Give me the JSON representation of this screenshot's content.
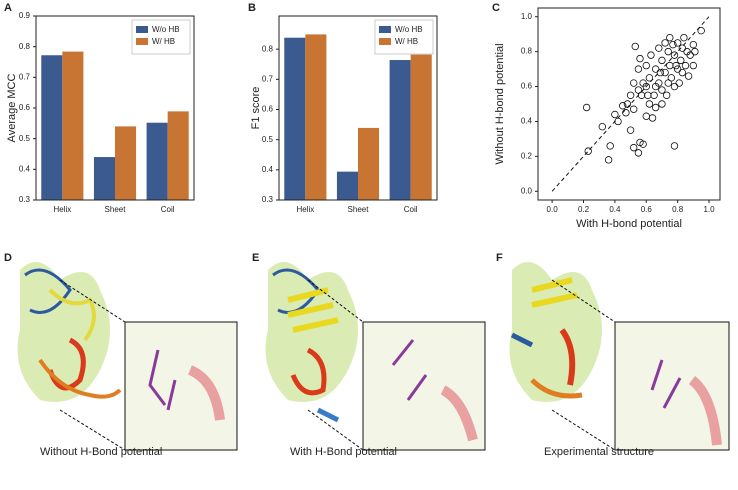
{
  "chart_data": [
    {
      "type": "bar",
      "panel": "A",
      "ylabel": "Average MCC",
      "categories": [
        "Helix",
        "Sheet",
        "Coil"
      ],
      "series": [
        {
          "name": "W/o HB",
          "color": "#3b5a8f",
          "values": [
            0.772,
            0.44,
            0.552
          ]
        },
        {
          "name": "W/ HB",
          "color": "#c87533",
          "values": [
            0.784,
            0.54,
            0.589
          ]
        }
      ],
      "ylim": [
        0.3,
        0.9
      ],
      "yticks": [
        0.3,
        0.4,
        0.5,
        0.6,
        0.7,
        0.8,
        0.9
      ],
      "legend": "upper right"
    },
    {
      "type": "bar",
      "panel": "B",
      "ylabel": "F1 score",
      "categories": [
        "Helix",
        "Sheet",
        "Coil"
      ],
      "series": [
        {
          "name": "W/o HB",
          "color": "#3b5a8f",
          "values": [
            0.838,
            0.394,
            0.764
          ]
        },
        {
          "name": "W/ HB",
          "color": "#c87533",
          "values": [
            0.849,
            0.539,
            0.782
          ]
        }
      ],
      "ylim": [
        0.3,
        0.91
      ],
      "yticks": [
        0.3,
        0.4,
        0.5,
        0.6,
        0.7,
        0.8
      ],
      "legend": "upper right"
    },
    {
      "type": "scatter",
      "panel": "C",
      "xlabel": "With H-bond potential",
      "ylabel": "Without H-bond potential",
      "x": [
        0.22,
        0.23,
        0.32,
        0.36,
        0.37,
        0.4,
        0.42,
        0.45,
        0.48,
        0.5,
        0.52,
        0.53,
        0.55,
        0.56,
        0.58,
        0.6,
        0.78,
        0.55,
        0.95,
        0.9,
        0.52,
        0.57,
        0.6,
        0.62,
        0.65,
        0.66,
        0.68,
        0.7,
        0.72,
        0.74,
        0.75,
        0.76,
        0.78,
        0.8,
        0.8,
        0.82,
        0.83,
        0.85,
        0.86,
        0.88,
        0.9,
        0.7,
        0.68,
        0.72,
        0.75,
        0.78,
        0.62,
        0.64,
        0.66,
        0.58,
        0.6,
        0.55,
        0.5,
        0.47,
        0.63,
        0.7,
        0.73,
        0.77,
        0.84,
        0.87,
        0.91,
        0.81,
        0.69,
        0.74,
        0.66,
        0.52,
        0.56,
        0.61,
        0.79,
        0.83
      ],
      "values": [
        0.48,
        0.23,
        0.37,
        0.18,
        0.26,
        0.44,
        0.4,
        0.49,
        0.5,
        0.35,
        0.25,
        0.83,
        0.22,
        0.28,
        0.27,
        0.43,
        0.26,
        0.7,
        0.92,
        0.84,
        0.47,
        0.55,
        0.6,
        0.65,
        0.55,
        0.7,
        0.62,
        0.75,
        0.68,
        0.8,
        0.72,
        0.65,
        0.78,
        0.85,
        0.7,
        0.75,
        0.82,
        0.72,
        0.8,
        0.78,
        0.72,
        0.58,
        0.82,
        0.85,
        0.88,
        0.6,
        0.5,
        0.42,
        0.48,
        0.62,
        0.72,
        0.58,
        0.55,
        0.45,
        0.78,
        0.5,
        0.55,
        0.84,
        0.88,
        0.66,
        0.8,
        0.62,
        0.68,
        0.62,
        0.6,
        0.62,
        0.76,
        0.55,
        0.72,
        0.68
      ],
      "xlim": [
        -0.09,
        1.07
      ],
      "ylim": [
        -0.05,
        1.05
      ],
      "xticks": [
        {
          "value": 0,
          "label": "0.0"
        },
        0.2,
        0.4,
        0.6,
        0.8,
        {
          "value": 1,
          "label": "1.0"
        }
      ],
      "yticks": [
        {
          "value": 0,
          "label": "0.0"
        },
        0.2,
        0.4,
        0.6,
        0.8,
        {
          "value": 1,
          "label": "1.0"
        }
      ]
    }
  ],
  "panels": [
    {
      "label": "D",
      "caption": "Without H-Bond potential"
    },
    {
      "label": "E",
      "caption": "With H-Bond potential"
    },
    {
      "label": "F",
      "caption": "Experimental structure"
    }
  ]
}
